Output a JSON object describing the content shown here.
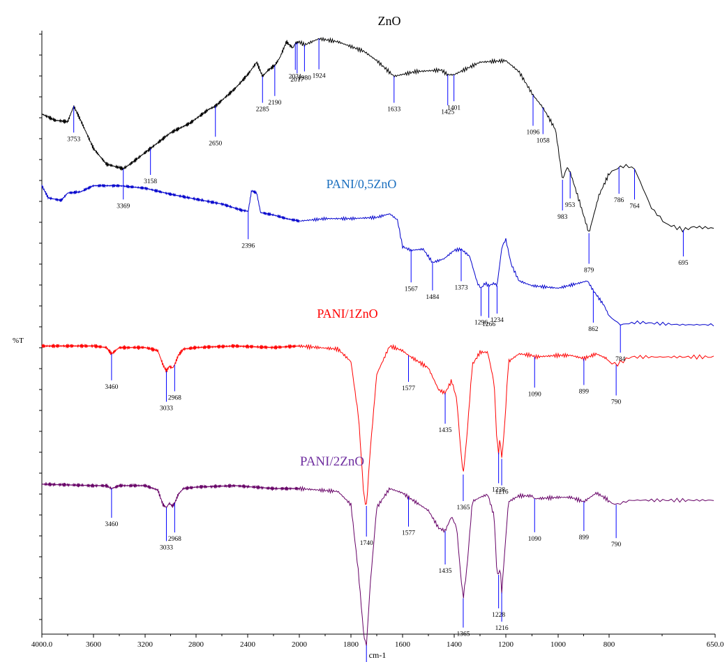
{
  "chart_data": {
    "type": "line",
    "title": "",
    "xlabel": "cm-1",
    "ylabel": "%T",
    "xlim": [
      4000,
      650
    ],
    "x_ticks": [
      "4000.0",
      "3600",
      "3200",
      "2800",
      "2400",
      "2000",
      "1800",
      "1600",
      "1400",
      "1200",
      "1000",
      "800",
      "650.0"
    ],
    "grid": false,
    "series": [
      {
        "name": "ZnO",
        "color": "#000000",
        "points": [
          [
            4000,
            -0.3
          ],
          [
            3900,
            -0.5
          ],
          [
            3800,
            -0.55
          ],
          [
            3753,
            -0.05
          ],
          [
            3700,
            -0.5
          ],
          [
            3600,
            -1.4
          ],
          [
            3500,
            -1.9
          ],
          [
            3369,
            -2.05
          ],
          [
            3300,
            -1.85
          ],
          [
            3158,
            -1.4
          ],
          [
            3000,
            -0.9
          ],
          [
            2850,
            -0.6
          ],
          [
            2700,
            -0.15
          ],
          [
            2650,
            -0.05
          ],
          [
            2500,
            0.5
          ],
          [
            2400,
            0.95
          ],
          [
            2330,
            1.35
          ],
          [
            2285,
            0.9
          ],
          [
            2240,
            1.1
          ],
          [
            2190,
            1.25
          ],
          [
            2150,
            1.5
          ],
          [
            2100,
            2.0
          ],
          [
            2050,
            1.8
          ],
          [
            2031,
            1.95
          ],
          [
            2000,
            2.0
          ],
          [
            1980,
            1.9
          ],
          [
            1924,
            2.1
          ],
          [
            1850,
            2.0
          ],
          [
            1750,
            1.7
          ],
          [
            1700,
            1.4
          ],
          [
            1633,
            0.9
          ],
          [
            1550,
            1.05
          ],
          [
            1450,
            1.1
          ],
          [
            1425,
            0.95
          ],
          [
            1401,
            0.95
          ],
          [
            1300,
            1.35
          ],
          [
            1200,
            1.4
          ],
          [
            1150,
            1.05
          ],
          [
            1096,
            0.3
          ],
          [
            1058,
            -0.1
          ],
          [
            1010,
            -0.8
          ],
          [
            983,
            -2.4
          ],
          [
            965,
            -2.0
          ],
          [
            953,
            -2.15
          ],
          [
            920,
            -3.0
          ],
          [
            879,
            -4.1
          ],
          [
            840,
            -2.9
          ],
          [
            800,
            -2.2
          ],
          [
            786,
            -2.0
          ],
          [
            775,
            -1.95
          ],
          [
            764,
            -2.05
          ],
          [
            740,
            -3.3
          ],
          [
            720,
            -3.8
          ],
          [
            695,
            -4.0
          ],
          [
            680,
            -3.9
          ],
          [
            650,
            -3.95
          ]
        ],
        "labels": [
          "3753",
          "3369",
          "3158",
          "2650",
          "2285",
          "2190",
          "2031",
          "2017",
          "1980",
          "1924",
          "1633",
          "1425",
          "1401",
          "1096",
          "1058",
          "983",
          "953",
          "879",
          "786",
          "764",
          "695"
        ]
      },
      {
        "name": "PANI/0,5ZnO",
        "color": "#0000cc",
        "points": [
          [
            4000,
            -4.7
          ],
          [
            3950,
            -5.2
          ],
          [
            3850,
            -5.3
          ],
          [
            3800,
            -5.0
          ],
          [
            3700,
            -4.95
          ],
          [
            3600,
            -4.7
          ],
          [
            3400,
            -4.7
          ],
          [
            3200,
            -4.8
          ],
          [
            3000,
            -5.05
          ],
          [
            2800,
            -5.25
          ],
          [
            2600,
            -5.45
          ],
          [
            2450,
            -5.7
          ],
          [
            2396,
            -5.75
          ],
          [
            2370,
            -4.9
          ],
          [
            2330,
            -5.0
          ],
          [
            2300,
            -5.8
          ],
          [
            2200,
            -5.9
          ],
          [
            2100,
            -6.05
          ],
          [
            2000,
            -6.15
          ],
          [
            1900,
            -6.05
          ],
          [
            1800,
            -6.05
          ],
          [
            1700,
            -6.0
          ],
          [
            1650,
            -5.85
          ],
          [
            1620,
            -6.1
          ],
          [
            1600,
            -7.2
          ],
          [
            1567,
            -7.35
          ],
          [
            1520,
            -7.3
          ],
          [
            1484,
            -7.85
          ],
          [
            1440,
            -7.7
          ],
          [
            1400,
            -7.35
          ],
          [
            1373,
            -7.3
          ],
          [
            1340,
            -7.6
          ],
          [
            1310,
            -8.7
          ],
          [
            1296,
            -8.9
          ],
          [
            1280,
            -8.7
          ],
          [
            1266,
            -8.8
          ],
          [
            1245,
            -8.7
          ],
          [
            1234,
            -8.8
          ],
          [
            1215,
            -7.2
          ],
          [
            1200,
            -6.9
          ],
          [
            1180,
            -7.9
          ],
          [
            1150,
            -8.6
          ],
          [
            1100,
            -8.8
          ],
          [
            1000,
            -8.9
          ],
          [
            920,
            -8.7
          ],
          [
            885,
            -8.6
          ],
          [
            862,
            -9.0
          ],
          [
            820,
            -9.6
          ],
          [
            784,
            -10.4
          ],
          [
            760,
            -10.3
          ],
          [
            700,
            -10.4
          ],
          [
            650,
            -10.4
          ]
        ],
        "labels": [
          "2396",
          "1567",
          "1484",
          "1373",
          "1296",
          "1266",
          "1234",
          "862",
          "784"
        ]
      },
      {
        "name": "PANI/1ZnO",
        "color": "#ff0000",
        "points": [
          [
            4000,
            -10.7
          ],
          [
            3600,
            -10.7
          ],
          [
            3500,
            -10.75
          ],
          [
            3460,
            -10.95
          ],
          [
            3400,
            -10.75
          ],
          [
            3200,
            -10.75
          ],
          [
            3100,
            -10.85
          ],
          [
            3060,
            -11.3
          ],
          [
            3033,
            -11.5
          ],
          [
            3010,
            -11.35
          ],
          [
            2985,
            -11.4
          ],
          [
            2968,
            -11.3
          ],
          [
            2940,
            -11.0
          ],
          [
            2900,
            -10.8
          ],
          [
            2800,
            -10.75
          ],
          [
            2500,
            -10.7
          ],
          [
            2200,
            -10.75
          ],
          [
            2000,
            -10.7
          ],
          [
            1850,
            -10.8
          ],
          [
            1800,
            -11.2
          ],
          [
            1770,
            -13.0
          ],
          [
            1750,
            -15.5
          ],
          [
            1740,
            -15.8
          ],
          [
            1725,
            -14.0
          ],
          [
            1700,
            -11.6
          ],
          [
            1650,
            -10.7
          ],
          [
            1600,
            -10.85
          ],
          [
            1577,
            -11.0
          ],
          [
            1500,
            -11.4
          ],
          [
            1460,
            -12.1
          ],
          [
            1435,
            -12.2
          ],
          [
            1410,
            -11.8
          ],
          [
            1390,
            -12.4
          ],
          [
            1375,
            -14.0
          ],
          [
            1365,
            -14.8
          ],
          [
            1350,
            -13.5
          ],
          [
            1330,
            -11.3
          ],
          [
            1300,
            -10.9
          ],
          [
            1270,
            -10.9
          ],
          [
            1245,
            -11.9
          ],
          [
            1235,
            -13.7
          ],
          [
            1228,
            -14.1
          ],
          [
            1222,
            -13.6
          ],
          [
            1216,
            -14.3
          ],
          [
            1205,
            -13.3
          ],
          [
            1190,
            -11.2
          ],
          [
            1150,
            -10.95
          ],
          [
            1100,
            -11.0
          ],
          [
            1090,
            -11.05
          ],
          [
            1000,
            -11.0
          ],
          [
            950,
            -11.0
          ],
          [
            899,
            -11.1
          ],
          [
            850,
            -10.95
          ],
          [
            810,
            -11.1
          ],
          [
            790,
            -11.3
          ],
          [
            770,
            -11.05
          ],
          [
            700,
            -11.05
          ],
          [
            650,
            -11.05
          ]
        ],
        "labels": [
          "3460",
          "3033",
          "2968",
          "1740",
          "1577",
          "1435",
          "1365",
          "1228",
          "1216",
          "1090",
          "899",
          "790"
        ]
      },
      {
        "name": "PANI/2ZnO",
        "color": "#660066",
        "points": [
          [
            4000,
            -15.4
          ],
          [
            3600,
            -15.45
          ],
          [
            3500,
            -15.45
          ],
          [
            3460,
            -15.55
          ],
          [
            3400,
            -15.45
          ],
          [
            3200,
            -15.45
          ],
          [
            3100,
            -15.6
          ],
          [
            3060,
            -16.1
          ],
          [
            3033,
            -16.2
          ],
          [
            3010,
            -16.05
          ],
          [
            2985,
            -16.15
          ],
          [
            2968,
            -16.05
          ],
          [
            2940,
            -15.75
          ],
          [
            2900,
            -15.55
          ],
          [
            2800,
            -15.5
          ],
          [
            2500,
            -15.45
          ],
          [
            2200,
            -15.55
          ],
          [
            2000,
            -15.55
          ],
          [
            1850,
            -15.65
          ],
          [
            1800,
            -16.1
          ],
          [
            1770,
            -18.5
          ],
          [
            1750,
            -20.6
          ],
          [
            1740,
            -20.9
          ],
          [
            1725,
            -18.8
          ],
          [
            1700,
            -16.2
          ],
          [
            1650,
            -15.55
          ],
          [
            1600,
            -15.7
          ],
          [
            1577,
            -15.85
          ],
          [
            1500,
            -16.3
          ],
          [
            1460,
            -16.9
          ],
          [
            1435,
            -17.0
          ],
          [
            1410,
            -16.5
          ],
          [
            1390,
            -16.9
          ],
          [
            1375,
            -18.5
          ],
          [
            1365,
            -19.3
          ],
          [
            1350,
            -18.2
          ],
          [
            1330,
            -16.0
          ],
          [
            1300,
            -15.85
          ],
          [
            1270,
            -15.75
          ],
          [
            1245,
            -16.5
          ],
          [
            1235,
            -18.4
          ],
          [
            1228,
            -18.5
          ],
          [
            1222,
            -18.2
          ],
          [
            1216,
            -19.1
          ],
          [
            1205,
            -17.8
          ],
          [
            1190,
            -16.0
          ],
          [
            1150,
            -15.8
          ],
          [
            1100,
            -15.8
          ],
          [
            1090,
            -15.9
          ],
          [
            1000,
            -15.85
          ],
          [
            950,
            -15.85
          ],
          [
            899,
            -16.0
          ],
          [
            850,
            -15.7
          ],
          [
            810,
            -15.9
          ],
          [
            790,
            -16.1
          ],
          [
            770,
            -15.95
          ],
          [
            700,
            -15.95
          ],
          [
            650,
            -15.95
          ]
        ],
        "labels": [
          "3460",
          "3033",
          "2968",
          "1740",
          "1577",
          "1435",
          "1365",
          "1228",
          "1216",
          "1090",
          "899",
          "790"
        ]
      }
    ]
  }
}
